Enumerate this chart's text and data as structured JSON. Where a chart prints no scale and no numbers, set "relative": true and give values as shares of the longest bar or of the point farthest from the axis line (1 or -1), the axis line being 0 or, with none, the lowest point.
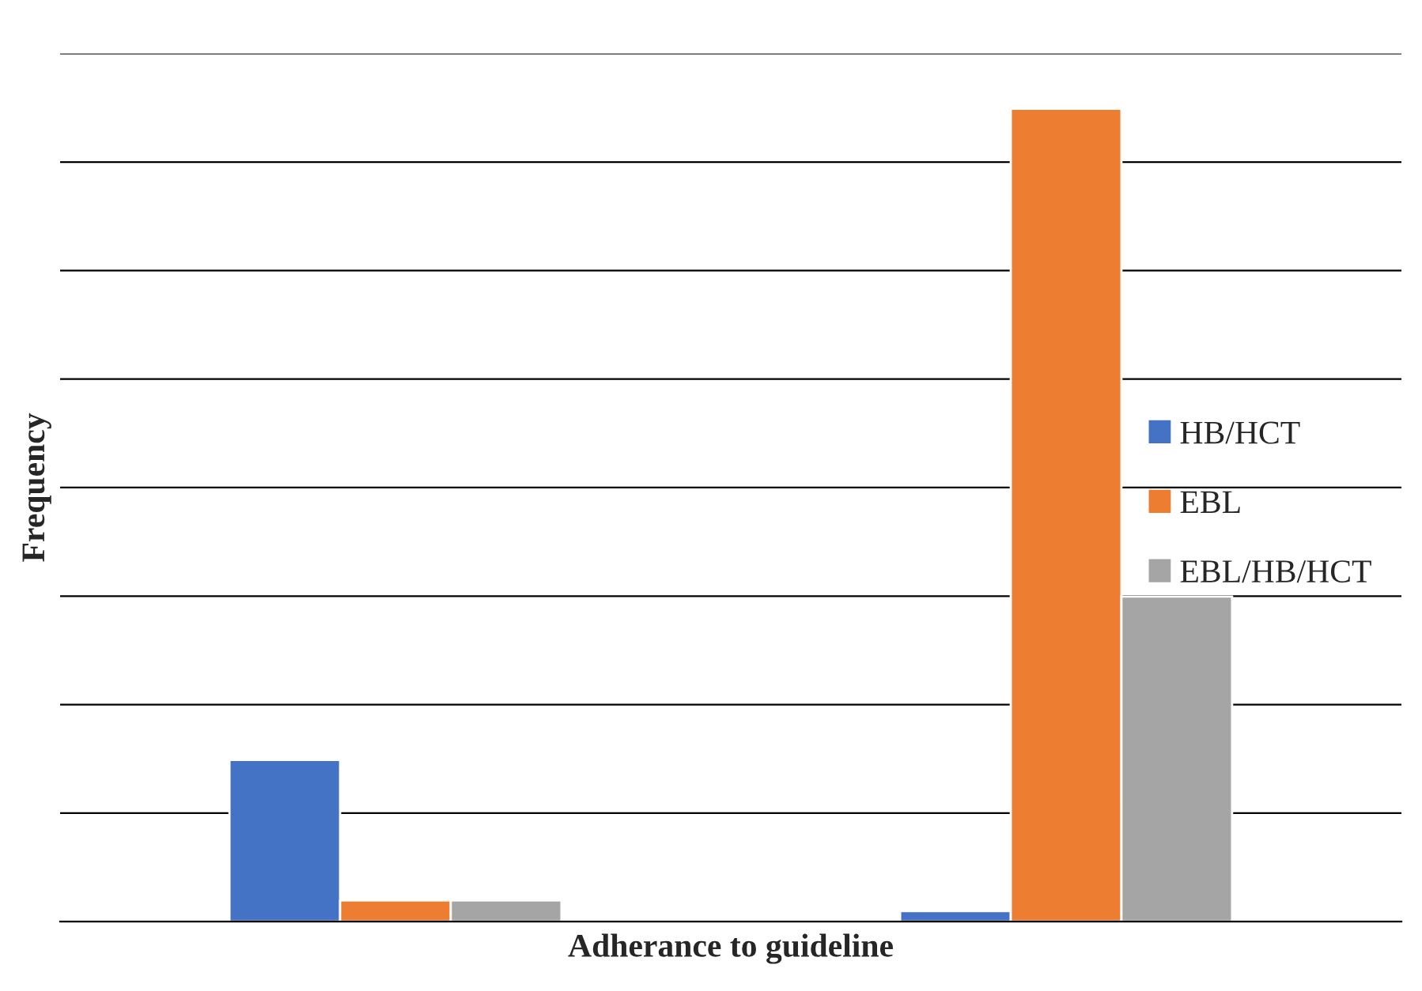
{
  "chart_data": {
    "type": "bar",
    "relative": true,
    "xlabel": "Adherance to guideline",
    "ylabel": "Frequency",
    "categories": [
      null,
      null
    ],
    "series": [
      {
        "name": "HB/HCT",
        "color": "#4472c4",
        "values": [
          0.199,
          0.013
        ]
      },
      {
        "name": "EBL",
        "color": "#ed7d31",
        "values": [
          0.026,
          1
        ]
      },
      {
        "name": "EBL/HB/HCT",
        "color": "#a5a5a5",
        "values": [
          0.026,
          0.4
        ]
      }
    ],
    "grid": "y",
    "legend": "right"
  }
}
